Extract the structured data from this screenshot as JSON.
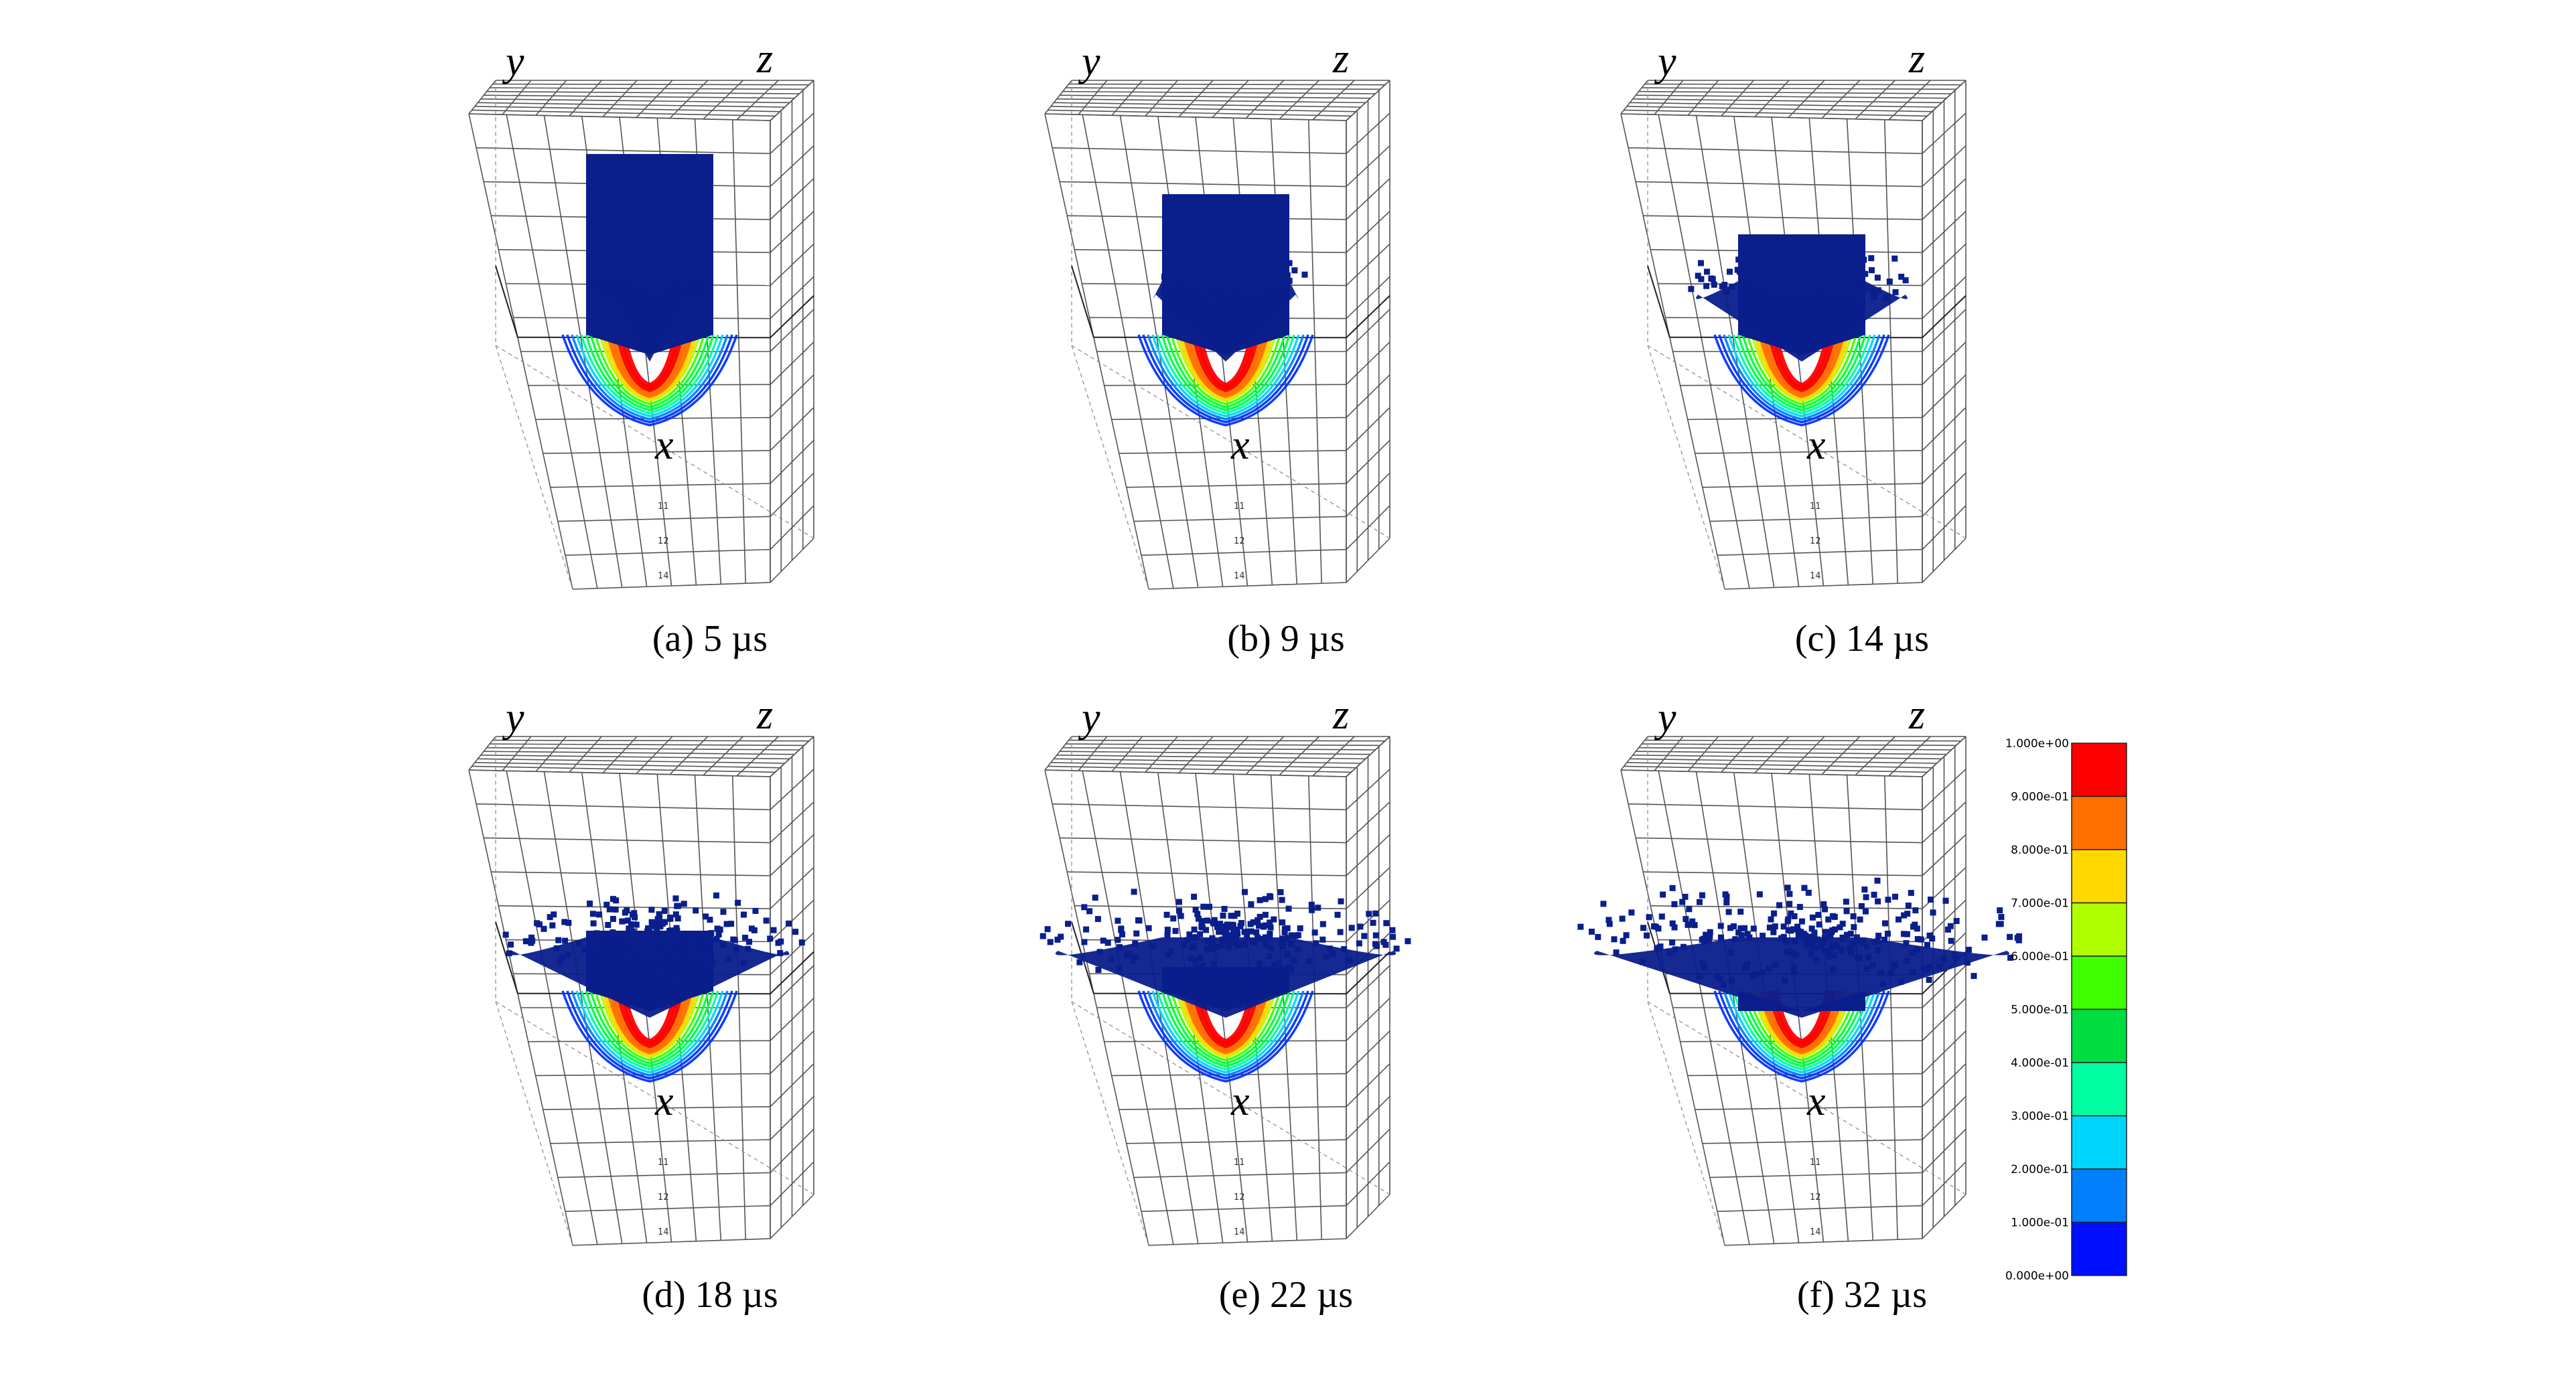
{
  "colors": {
    "particle": "#0a1e8c",
    "contour": [
      "#0033ff",
      "#0080ff",
      "#00d5ff",
      "#00ffa0",
      "#00ff40",
      "#40ff00",
      "#b0ff00",
      "#ffd800",
      "#ff7000",
      "#ff0000"
    ]
  },
  "panels": [
    {
      "caption": "(a) 5 µs",
      "axes": {
        "y": "y",
        "z": "z",
        "x": "x"
      },
      "ticks_side": [
        "11",
        "12",
        "14"
      ]
    },
    {
      "caption": "(b) 9 µs",
      "axes": {
        "y": "y",
        "z": "z",
        "x": "x"
      },
      "ticks_side": [
        "11",
        "12",
        "14"
      ]
    },
    {
      "caption": "(c) 14 µs",
      "axes": {
        "y": "y",
        "z": "z",
        "x": "x"
      },
      "ticks_side": [
        "11",
        "12",
        "14"
      ]
    },
    {
      "caption": "(d) 18 µs",
      "axes": {
        "y": "y",
        "z": "z",
        "x": "x"
      },
      "ticks_side": [
        "11",
        "12",
        "14"
      ]
    },
    {
      "caption": "(e) 22 µs",
      "axes": {
        "y": "y",
        "z": "z",
        "x": "x"
      },
      "ticks_side": [
        "11",
        "12",
        "14"
      ]
    },
    {
      "caption": "(f) 32 µs",
      "axes": {
        "y": "y",
        "z": "z",
        "x": "x"
      },
      "ticks_side": [
        "11",
        "12",
        "14"
      ]
    }
  ],
  "colorbar": {
    "labels": [
      "1.000e+00",
      "9.000e-01",
      "8.000e-01",
      "7.000e-01",
      "6.000e-01",
      "5.000e-01",
      "4.000e-01",
      "3.000e-01",
      "2.000e-01",
      "1.000e-01",
      "0.000e+00"
    ],
    "colors": [
      "#ff0000",
      "#ff7000",
      "#ffd800",
      "#b0ff00",
      "#40ff00",
      "#00dd40",
      "#00ffa0",
      "#00d5ff",
      "#0080ff",
      "#0010ff"
    ]
  }
}
